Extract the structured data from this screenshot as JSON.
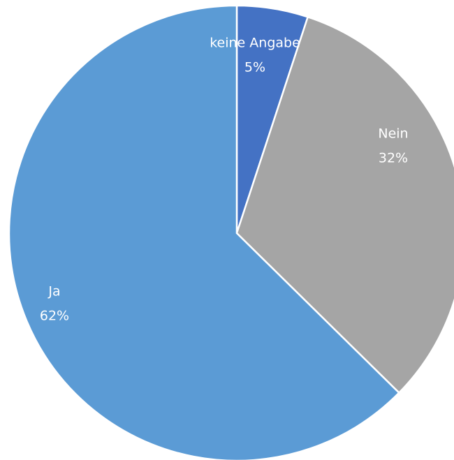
{
  "chart_data": {
    "type": "pie",
    "categories": [
      "keine Angabe",
      "Nein",
      "Ja"
    ],
    "values": [
      5,
      32,
      62
    ],
    "value_labels": [
      "5%",
      "32%",
      "62%"
    ],
    "colors": [
      "#4472c4",
      "#a5a5a5",
      "#5b9bd5"
    ]
  }
}
